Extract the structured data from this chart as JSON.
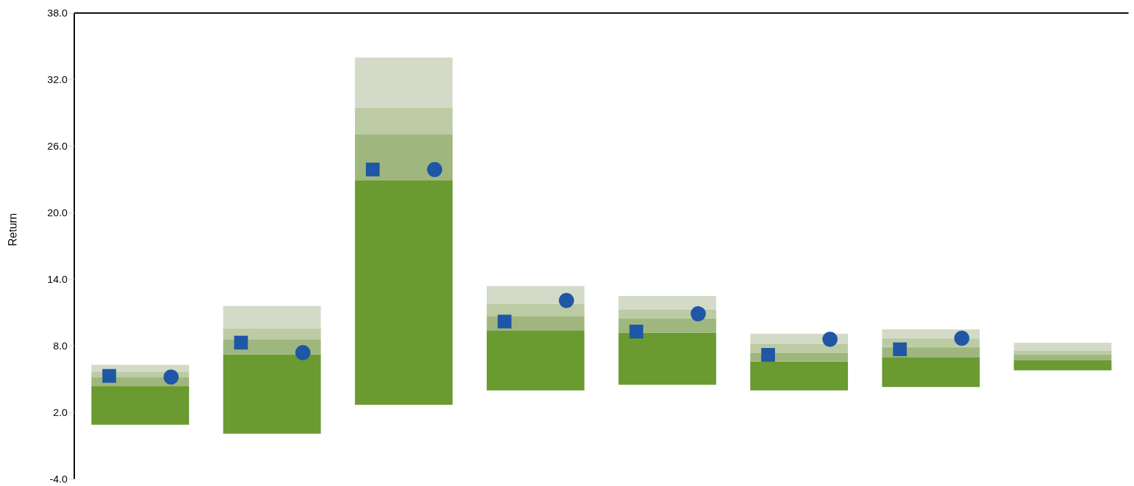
{
  "chart_data": {
    "type": "bar",
    "ylabel": "Return",
    "categories": [
      null,
      null,
      null,
      null,
      null,
      null,
      null,
      null
    ],
    "series": [
      {
        "color": "#6a9a30",
        "base": [
          0.9,
          0.1,
          2.7,
          4.0,
          4.5,
          4.0,
          4.3,
          5.8
        ],
        "values": [
          3.5,
          7.1,
          20.2,
          5.4,
          4.7,
          2.6,
          2.7,
          0.9
        ]
      },
      {
        "color": "#9fb77e",
        "base": [
          4.4,
          7.2,
          22.9,
          9.4,
          9.2,
          6.6,
          7.0,
          6.7
        ],
        "values": [
          0.8,
          1.4,
          4.2,
          1.3,
          1.3,
          0.8,
          0.9,
          0.5
        ]
      },
      {
        "color": "#bccba4",
        "base": [
          5.2,
          8.6,
          27.1,
          10.7,
          10.5,
          7.4,
          7.9,
          7.2
        ],
        "values": [
          0.5,
          1.0,
          2.4,
          1.1,
          0.8,
          0.8,
          0.8,
          0.4
        ]
      },
      {
        "color": "#d3dac8",
        "base": [
          5.7,
          9.6,
          29.5,
          11.8,
          11.3,
          8.2,
          8.7,
          7.6
        ],
        "values": [
          0.6,
          2.0,
          4.5,
          1.6,
          1.2,
          0.9,
          0.8,
          0.7
        ]
      },
      {
        "type": "scatter",
        "marker": "square",
        "color": "#1f56a5",
        "values": [
          5.3,
          8.3,
          23.9,
          10.2,
          9.3,
          7.2,
          7.7,
          null
        ]
      },
      {
        "type": "scatter",
        "marker": "circle",
        "color": "#1f56a5",
        "values": [
          5.2,
          7.4,
          23.9,
          12.1,
          10.9,
          8.6,
          8.7,
          null
        ]
      }
    ],
    "ylim": [
      -4,
      38
    ],
    "yticks": [
      {
        "value": -4,
        "label": "-4.0"
      },
      {
        "value": 2,
        "label": "2.0"
      },
      {
        "value": 8,
        "label": "8.0"
      },
      {
        "value": 14,
        "label": "14.0"
      },
      {
        "value": 20,
        "label": "20.0"
      },
      {
        "value": 26,
        "label": "26.0"
      },
      {
        "value": 32,
        "label": "32.0"
      },
      {
        "value": 38,
        "label": "38.0"
      }
    ],
    "tick_labels": "y",
    "grid": false,
    "legend": false
  }
}
